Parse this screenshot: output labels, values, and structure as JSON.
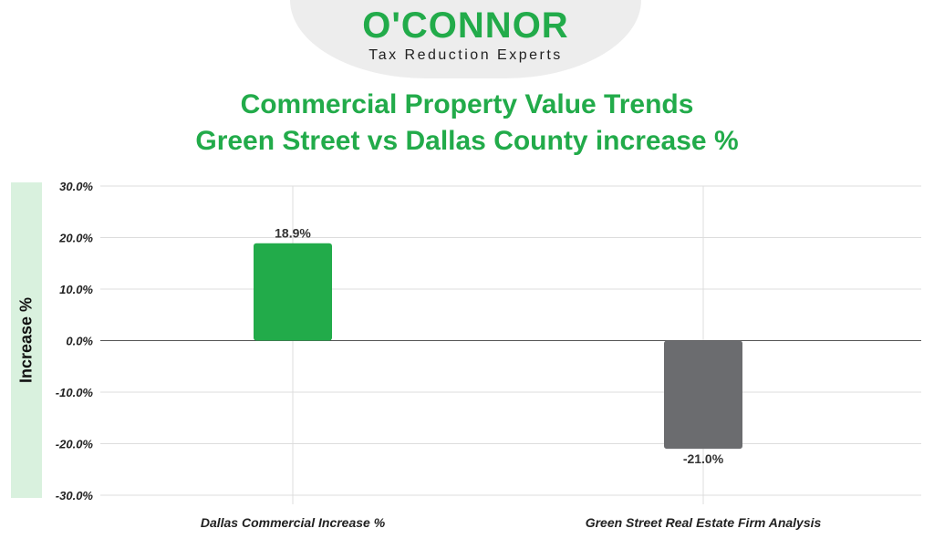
{
  "logo": {
    "name": "O'CONNOR",
    "tagline": "Tax Reduction Experts"
  },
  "colors": {
    "brand": "#22ab4a",
    "negative_bar": "#6b6c6f",
    "label_band": "#d9f1de"
  },
  "chart_data": {
    "type": "bar",
    "title": "Commercial Property Value Trends",
    "subtitle": "Green Street vs Dallas County increase %",
    "ylabel": "Increase %",
    "xlabel": "",
    "ylim": [
      -30,
      30
    ],
    "ytick_step": 10,
    "ytick_labels": [
      "30.0%",
      "20.0%",
      "10.0%",
      "0.0%",
      "-10.0%",
      "-20.0%",
      "-30.0%"
    ],
    "grid": true,
    "categories": [
      "Dallas Commercial Increase %",
      "Green Street Real Estate Firm Analysis"
    ],
    "values": [
      18.9,
      -21.0
    ],
    "data_labels": [
      "18.9%",
      "-21.0%"
    ],
    "bar_colors": [
      "#22ab4a",
      "#6b6c6f"
    ]
  }
}
